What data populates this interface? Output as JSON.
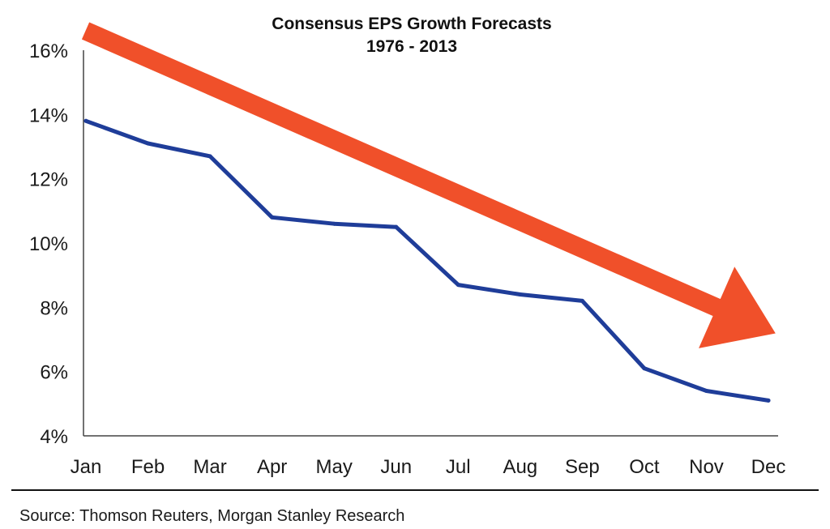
{
  "chart_data": {
    "type": "line",
    "title": "Consensus EPS Growth Forecasts",
    "subtitle": "1976 - 2013",
    "categories": [
      "Jan",
      "Feb",
      "Mar",
      "Apr",
      "May",
      "Jun",
      "Jul",
      "Aug",
      "Sep",
      "Oct",
      "Nov",
      "Dec"
    ],
    "series": [
      {
        "values": [
          13.8,
          13.1,
          12.7,
          10.8,
          10.6,
          10.5,
          8.7,
          8.4,
          8.2,
          6.1,
          5.4,
          5.1
        ],
        "color": "#1f3d99"
      }
    ],
    "ylim": [
      4,
      16
    ],
    "yticks": [
      4,
      6,
      8,
      10,
      12,
      14,
      16
    ],
    "ytick_labels": [
      "4%",
      "6%",
      "8%",
      "10%",
      "12%",
      "14%",
      "16%"
    ],
    "xlabel": "",
    "ylabel": "",
    "grid": false,
    "legend": "none",
    "annotation": {
      "type": "trend-arrow",
      "color": "#f0502a",
      "from": {
        "x": "Jan",
        "y": 16.6
      },
      "to": {
        "x": "Dec",
        "y": 7.2
      }
    }
  },
  "source": "Source: Thomson Reuters, Morgan Stanley Research"
}
